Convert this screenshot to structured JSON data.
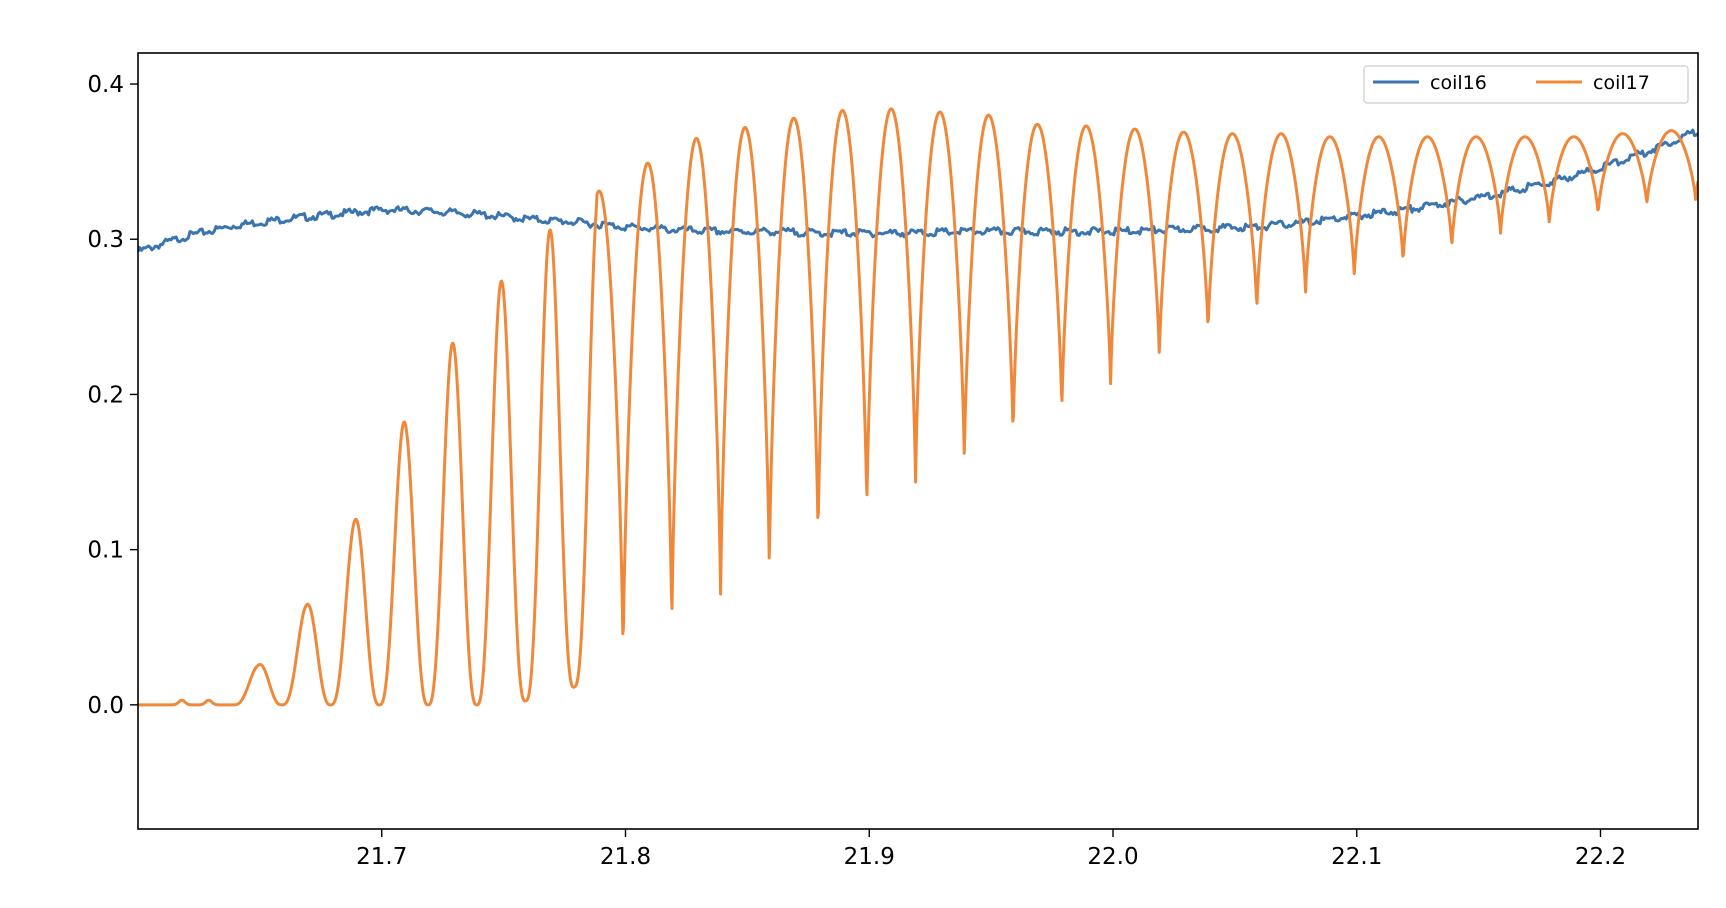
{
  "chart_data": {
    "type": "line",
    "title": "",
    "xlabel": "",
    "ylabel": "",
    "xlim": [
      21.6,
      22.24
    ],
    "ylim": [
      -0.08,
      0.42
    ],
    "grid": false,
    "legend": "top-right",
    "xticks": [
      21.7,
      21.8,
      21.9,
      22.0,
      22.1,
      22.2
    ],
    "xtick_labels": [
      "21.7",
      "21.8",
      "21.9",
      "22.0",
      "22.1",
      "22.2"
    ],
    "yticks": [
      0.0,
      0.1,
      0.2,
      0.3,
      0.4
    ],
    "ytick_labels": [
      "0.0",
      "0.1",
      "0.2",
      "0.3",
      "0.4"
    ],
    "series": [
      {
        "name": "coil16",
        "color": "#3a75b0",
        "x": [
          21.6,
          21.62,
          21.64,
          21.66,
          21.68,
          21.7,
          21.72,
          21.74,
          21.76,
          21.78,
          21.8,
          21.82,
          21.84,
          21.86,
          21.88,
          21.9,
          21.92,
          21.94,
          21.96,
          21.98,
          22.0,
          22.02,
          22.04,
          22.06,
          22.08,
          22.1,
          22.12,
          22.14,
          22.16,
          22.18,
          22.2,
          22.22,
          22.24
        ],
        "y": [
          0.292,
          0.302,
          0.309,
          0.313,
          0.316,
          0.319,
          0.318,
          0.316,
          0.313,
          0.311,
          0.308,
          0.306,
          0.305,
          0.305,
          0.304,
          0.304,
          0.304,
          0.305,
          0.305,
          0.305,
          0.305,
          0.306,
          0.307,
          0.308,
          0.311,
          0.315,
          0.319,
          0.324,
          0.33,
          0.337,
          0.346,
          0.357,
          0.37
        ]
      },
      {
        "name": "coil17",
        "color": "#f0883a",
        "baseline": 0.0,
        "peaks": [
          {
            "x": 21.618,
            "max": 0.003,
            "min": 0.0
          },
          {
            "x": 21.629,
            "max": 0.003,
            "min": 0.0
          },
          {
            "x": 21.649,
            "max": 0.025,
            "min": 0.0
          },
          {
            "x": 21.669,
            "max": 0.064,
            "min": 0.0
          },
          {
            "x": 21.689,
            "max": 0.119,
            "min": 0.0
          },
          {
            "x": 21.709,
            "max": 0.182,
            "min": 0.0
          },
          {
            "x": 21.729,
            "max": 0.233,
            "min": 0.0
          },
          {
            "x": 21.749,
            "max": 0.273,
            "min": 0.0
          },
          {
            "x": 21.769,
            "max": 0.306,
            "min": 0.005
          },
          {
            "x": 21.789,
            "max": 0.331,
            "min": 0.018
          },
          {
            "x": 21.809,
            "max": 0.349,
            "min": 0.038
          },
          {
            "x": 21.829,
            "max": 0.365,
            "min": 0.058
          },
          {
            "x": 21.849,
            "max": 0.372,
            "min": 0.076
          },
          {
            "x": 21.869,
            "max": 0.378,
            "min": 0.095
          },
          {
            "x": 21.889,
            "max": 0.383,
            "min": 0.115
          },
          {
            "x": 21.909,
            "max": 0.384,
            "min": 0.132
          },
          {
            "x": 21.929,
            "max": 0.382,
            "min": 0.148
          },
          {
            "x": 21.949,
            "max": 0.38,
            "min": 0.162
          },
          {
            "x": 21.969,
            "max": 0.374,
            "min": 0.18
          },
          {
            "x": 21.989,
            "max": 0.373,
            "min": 0.195
          },
          {
            "x": 22.009,
            "max": 0.371,
            "min": 0.214
          },
          {
            "x": 22.029,
            "max": 0.369,
            "min": 0.231
          },
          {
            "x": 22.049,
            "max": 0.368,
            "min": 0.248
          },
          {
            "x": 22.069,
            "max": 0.368,
            "min": 0.259
          },
          {
            "x": 22.089,
            "max": 0.366,
            "min": 0.27
          },
          {
            "x": 22.109,
            "max": 0.366,
            "min": 0.28
          },
          {
            "x": 22.129,
            "max": 0.366,
            "min": 0.289
          },
          {
            "x": 22.149,
            "max": 0.366,
            "min": 0.3
          },
          {
            "x": 22.169,
            "max": 0.366,
            "min": 0.306
          },
          {
            "x": 22.189,
            "max": 0.366,
            "min": 0.313
          },
          {
            "x": 22.209,
            "max": 0.368,
            "min": 0.319
          },
          {
            "x": 22.229,
            "max": 0.37,
            "min": 0.325
          }
        ]
      }
    ]
  }
}
